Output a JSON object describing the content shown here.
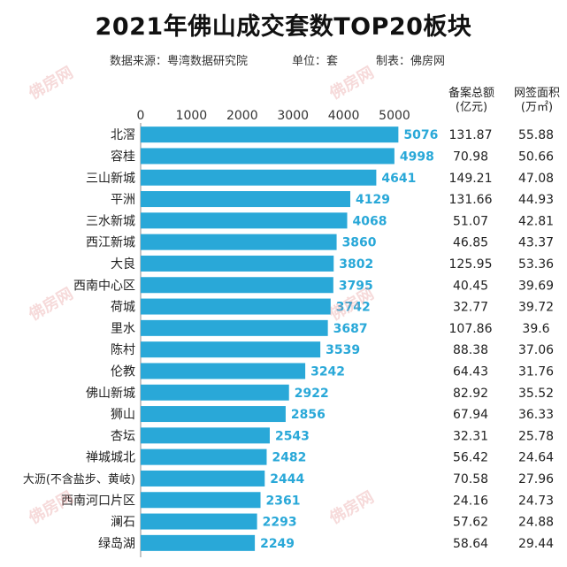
{
  "title": "2021年佛山成交套数TOP20板块",
  "source": {
    "data_source": "数据来源：粤湾数据研究院",
    "unit": "单位：套",
    "made_by": "制表：佛房网"
  },
  "columns": {
    "amount_header_line1": "备案总额",
    "amount_header_line2": "(亿元)",
    "area_header_line1": "网签面积",
    "area_header_line2": "(万㎡)"
  },
  "watermark": "佛房网",
  "colors": {
    "bar": "#29a8d8",
    "value_label": "#29a8d8",
    "text": "#222222"
  },
  "chart_data": {
    "type": "bar",
    "orientation": "horizontal",
    "title": "2021年佛山成交套数TOP20板块",
    "xlim": [
      0,
      5000
    ],
    "x_ticks": [
      "0",
      "1000",
      "2000",
      "3000",
      "4000",
      "5000"
    ],
    "categories": [
      "北滘",
      "容桂",
      "三山新城",
      "平洲",
      "三水新城",
      "西江新城",
      "大良",
      "西南中心区",
      "荷城",
      "里水",
      "陈村",
      "伦教",
      "佛山新城",
      "狮山",
      "杏坛",
      "禅城城北",
      "大沥(不含盐步、黄岐)",
      "西南河口片区",
      "澜石",
      "绿岛湖"
    ],
    "values": [
      5076,
      4998,
      4641,
      4129,
      4068,
      3860,
      3802,
      3795,
      3742,
      3687,
      3539,
      3242,
      2922,
      2856,
      2543,
      2482,
      2444,
      2361,
      2293,
      2249
    ],
    "amount": [
      "131.87",
      "70.98",
      "149.21",
      "131.66",
      "51.07",
      "46.85",
      "125.95",
      "40.45",
      "32.77",
      "107.86",
      "88.38",
      "64.43",
      "82.92",
      "67.94",
      "32.31",
      "56.42",
      "70.58",
      "24.16",
      "57.62",
      "58.64"
    ],
    "area": [
      "55.88",
      "50.66",
      "47.08",
      "44.93",
      "42.81",
      "43.37",
      "53.36",
      "39.69",
      "39.72",
      "39.6",
      "37.06",
      "31.76",
      "35.52",
      "36.33",
      "25.78",
      "24.64",
      "27.96",
      "24.73",
      "24.88",
      "29.44"
    ]
  }
}
